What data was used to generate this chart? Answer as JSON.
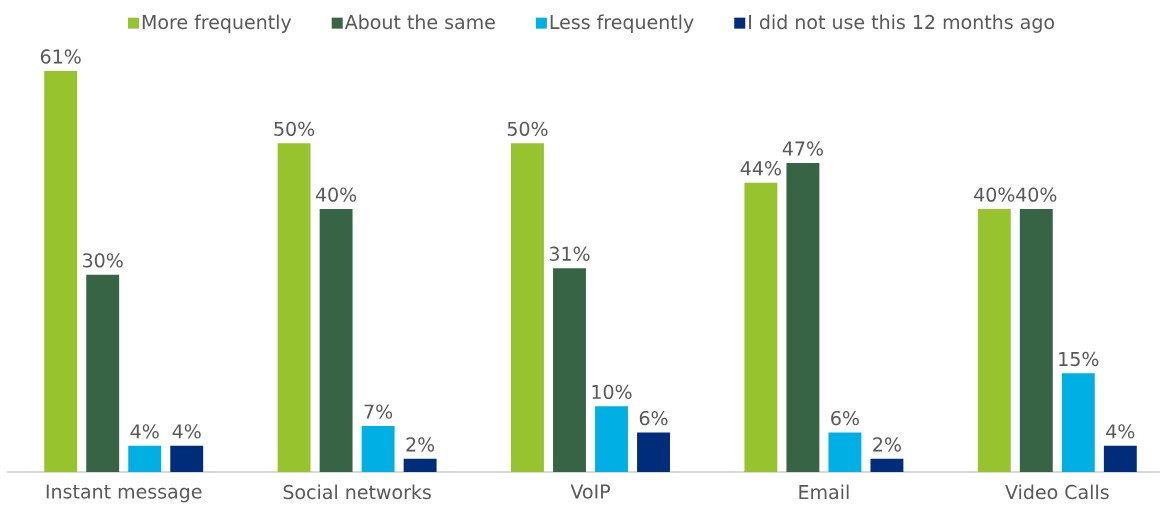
{
  "chart_data": {
    "type": "bar",
    "categories": [
      "Instant message",
      "Social networks",
      "VoIP",
      "Email",
      "Video Calls"
    ],
    "series": [
      {
        "name": "More frequently",
        "color": "#97c32e",
        "values": [
          61,
          50,
          50,
          44,
          40
        ],
        "value_labels": [
          "61%",
          "50%",
          "50%",
          "44%",
          "40%"
        ]
      },
      {
        "name": "About the same",
        "color": "#386446",
        "values": [
          30,
          40,
          31,
          47,
          40
        ],
        "value_labels": [
          "30%",
          "40%",
          "31%",
          "47%",
          "40%"
        ]
      },
      {
        "name": "Less frequently",
        "color": "#00b0e4",
        "values": [
          4,
          7,
          10,
          6,
          15
        ],
        "value_labels": [
          "4%",
          "7%",
          "10%",
          "6%",
          "15%"
        ]
      },
      {
        "name": "I did not use this 12 months ago",
        "color": "#002d7a",
        "values": [
          4,
          2,
          6,
          2,
          4
        ],
        "value_labels": [
          "4%",
          "2%",
          "6%",
          "2%",
          "4%"
        ]
      }
    ],
    "legend": "top"
  }
}
